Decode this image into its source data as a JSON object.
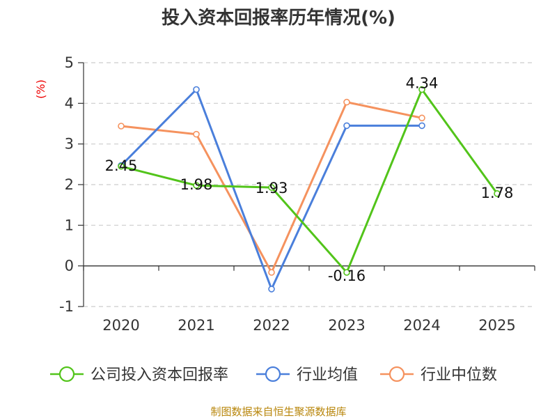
{
  "chart_data": {
    "type": "line",
    "title": "投入资本回报率历年情况(%)",
    "y_unit": "(%)",
    "categories": [
      "2020",
      "2021",
      "2022",
      "2023",
      "2024",
      "2025"
    ],
    "ylim": [
      -1,
      5
    ],
    "yticks": [
      "5",
      "4",
      "3",
      "2",
      "1",
      "0",
      "-1"
    ],
    "grid": true,
    "legend_position": "bottom",
    "series": [
      {
        "name": "公司投入资本回报率",
        "color": "#52c41a",
        "values": [
          2.45,
          1.98,
          1.93,
          -0.16,
          4.34,
          1.78
        ],
        "labels": [
          "2.45",
          "1.98",
          "1.93",
          "-0.16",
          "4.34",
          "1.78"
        ]
      },
      {
        "name": "行业均值",
        "color": "#4a7fdb",
        "values": [
          2.47,
          4.34,
          -0.57,
          3.45,
          3.45,
          null
        ]
      },
      {
        "name": "行业中位数",
        "color": "#f5925e",
        "values": [
          3.44,
          3.24,
          -0.16,
          4.03,
          3.64,
          null
        ]
      }
    ]
  },
  "source": "制图数据来自恒生聚源数据库"
}
